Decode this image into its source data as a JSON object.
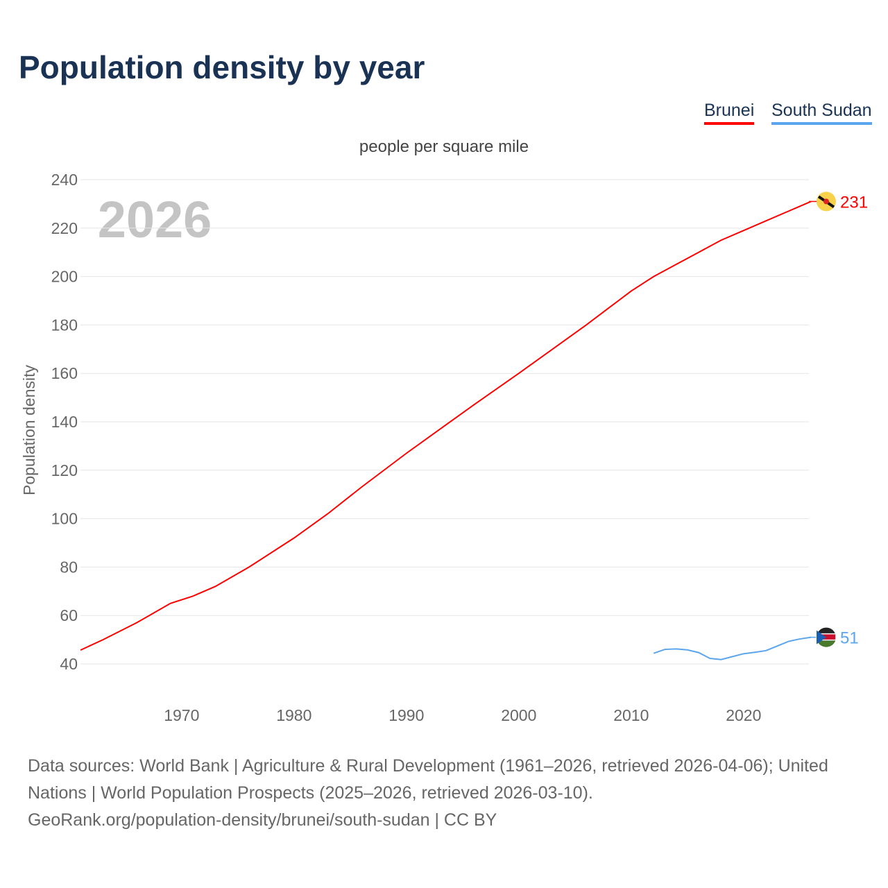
{
  "title": "Population density by year",
  "chart_data": {
    "type": "line",
    "subtitle": "people per square mile",
    "ylabel": "Population density",
    "xlabel": "",
    "year_watermark": "2026",
    "ylim": [
      40,
      240
    ],
    "xlim": [
      1961,
      2026
    ],
    "yticks": [
      "40",
      "60",
      "80",
      "100",
      "120",
      "140",
      "160",
      "180",
      "200",
      "220",
      "240"
    ],
    "xticks": [
      "1970",
      "1980",
      "1990",
      "2000",
      "2010",
      "2020"
    ],
    "grid": true,
    "legend_placement": "top-right",
    "series": [
      {
        "name": "Brunei",
        "color": "#ff0000",
        "end_label": "231",
        "flag": "brunei-flag",
        "x": [
          1961,
          1963,
          1966,
          1969,
          1971,
          1973,
          1976,
          1980,
          1983,
          1986,
          1990,
          1993,
          1996,
          2000,
          2003,
          2006,
          2008,
          2010,
          2012,
          2014,
          2016,
          2018,
          2020,
          2022,
          2024,
          2026
        ],
        "y": [
          45.7,
          50,
          57,
          65,
          68,
          72,
          80,
          92,
          102,
          113,
          127,
          137,
          147,
          160,
          170,
          180,
          187,
          194,
          200,
          205,
          210,
          215,
          219,
          223,
          227,
          231
        ]
      },
      {
        "name": "South Sudan",
        "color": "#5aa5ee",
        "end_label": "51",
        "flag": "south-sudan-flag",
        "x": [
          2012,
          2013,
          2014,
          2015,
          2016,
          2017,
          2018,
          2019,
          2020,
          2021,
          2022,
          2023,
          2024,
          2025,
          2026
        ],
        "y": [
          44.4,
          46,
          46.2,
          45.8,
          44.7,
          42.3,
          41.8,
          43,
          44.2,
          44.8,
          45.5,
          47.4,
          49.3,
          50.3,
          51
        ]
      }
    ]
  },
  "sources": "Data sources: World Bank | Agriculture & Rural Development (1961–2026, retrieved 2026-04-06); United Nations | World Population Prospects (2025–2026, retrieved 2026-03-10).",
  "url": "GeoRank.org/population-density/brunei/south-sudan | CC BY"
}
